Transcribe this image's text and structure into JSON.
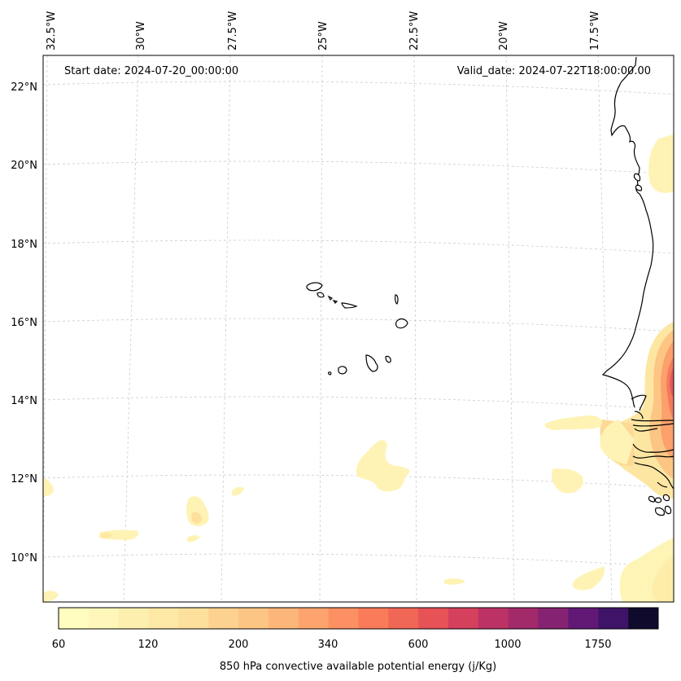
{
  "header": {
    "start_date": "Start date: 2024-07-20_00:00:00",
    "valid_date": "Valid_date: 2024-07-22T18:00:00.00"
  },
  "lon_labels": [
    "32.5°W",
    "30°W",
    "27.5°W",
    "25°W",
    "22.5°W",
    "20°W",
    "17.5°W"
  ],
  "lat_labels": [
    "22°N",
    "20°N",
    "18°N",
    "16°N",
    "14°N",
    "12°N",
    "10°N"
  ],
  "colorbar": {
    "title": "850 hPa convective available potential energy (j/Kg)",
    "tick_labels": [
      "60",
      "120",
      "200",
      "340",
      "600",
      "1000",
      "1750"
    ],
    "colors": [
      "#fffec0",
      "#fef7b9",
      "#fdf0af",
      "#fde8a5",
      "#fde09c",
      "#fdd290",
      "#fdc584",
      "#fdb679",
      "#fda46e",
      "#fc9063",
      "#f97b5a",
      "#f16756",
      "#e65256",
      "#d5405d",
      "#bd3264",
      "#a22a6a",
      "#852271",
      "#621976",
      "#3f1468",
      "#100b2d"
    ]
  }
}
